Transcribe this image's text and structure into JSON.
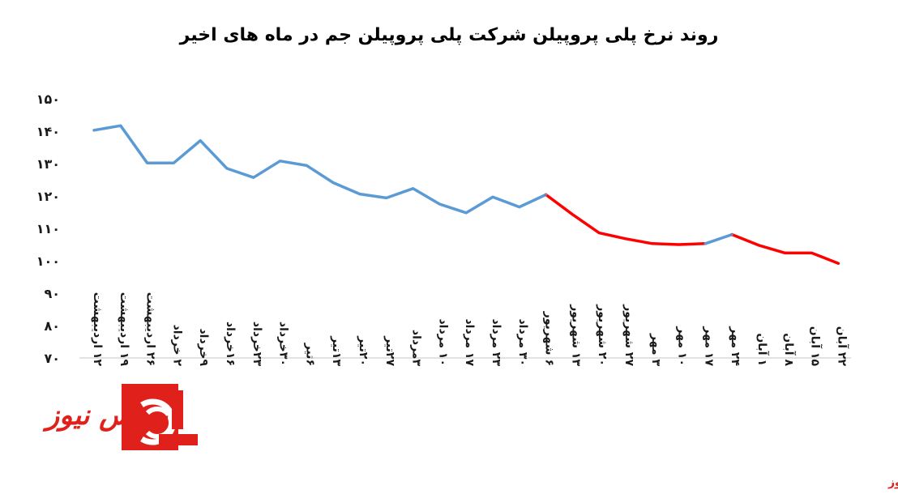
{
  "chart_data": {
    "type": "line",
    "title": "روند نرخ پلی پروپیلن شرکت پلی پروپیلن جم در ماه های اخیر",
    "xlabel": "",
    "ylabel": "",
    "ylim": [
      70,
      150
    ],
    "y_ticks": [
      "۷۰",
      "۸۰",
      "۹۰",
      "۱۰۰",
      "۱۱۰",
      "۱۲۰",
      "۱۳۰",
      "۱۴۰",
      "۱۵۰"
    ],
    "y_tick_values": [
      70,
      80,
      90,
      100,
      110,
      120,
      130,
      140,
      150
    ],
    "grid": false,
    "legend": "none",
    "categories": [
      "۱۲ اردیبهشت",
      "۱۹ اردیبهشت",
      "۲۶ اردیبهشت",
      "۲ خرداد",
      "۹خرداد",
      "۱۶خرداد",
      "۲۳خرداد",
      "۳۰خرداد",
      "۶تیر",
      "۱۳تیر",
      "۲۰تیر",
      "۲۷تیر",
      "۳مرداد",
      "۱۰ مرداد",
      "۱۷ مرداد",
      "۲۳ مرداد",
      "۳۰ مرداد",
      "۶ شهریور",
      "۱۳ شهریور",
      "۲۰ شهریور",
      "۲۷ شهریور",
      "۳ مهر",
      "۱۰ مهر",
      "۱۷ مهر",
      "۲۴ مهر",
      "۱ آبان",
      "۸ آبان",
      "۱۵ آبان",
      "۲۲ آبان"
    ],
    "values": [
      140.3,
      141.7,
      130.2,
      130.2,
      137.1,
      128.5,
      125.7,
      130.8,
      129.4,
      124.1,
      120.6,
      119.4,
      122.3,
      117.5,
      114.8,
      119.7,
      116.6,
      120.4,
      114.3,
      108.6,
      106.8,
      105.3,
      105,
      105.3,
      108.1,
      104.8,
      102.4,
      102.4,
      99.2
    ],
    "segments": [
      {
        "from_index": 0,
        "to_index": 17,
        "color": "#5b9bd5"
      },
      {
        "from_index": 17,
        "to_index": 23,
        "color": "#ff0000"
      },
      {
        "from_index": 23,
        "to_index": 24,
        "color": "#5b9bd5"
      },
      {
        "from_index": 24,
        "to_index": 28,
        "color": "#ff0000"
      }
    ],
    "colors": {
      "line_blue": "#5b9bd5",
      "line_red": "#ff0000",
      "axis": "#d9d9d9"
    }
  },
  "branding": {
    "logo_text": "بورس نیوز",
    "source_text": "بورس نیوز",
    "accent_color": "#e0201b"
  }
}
